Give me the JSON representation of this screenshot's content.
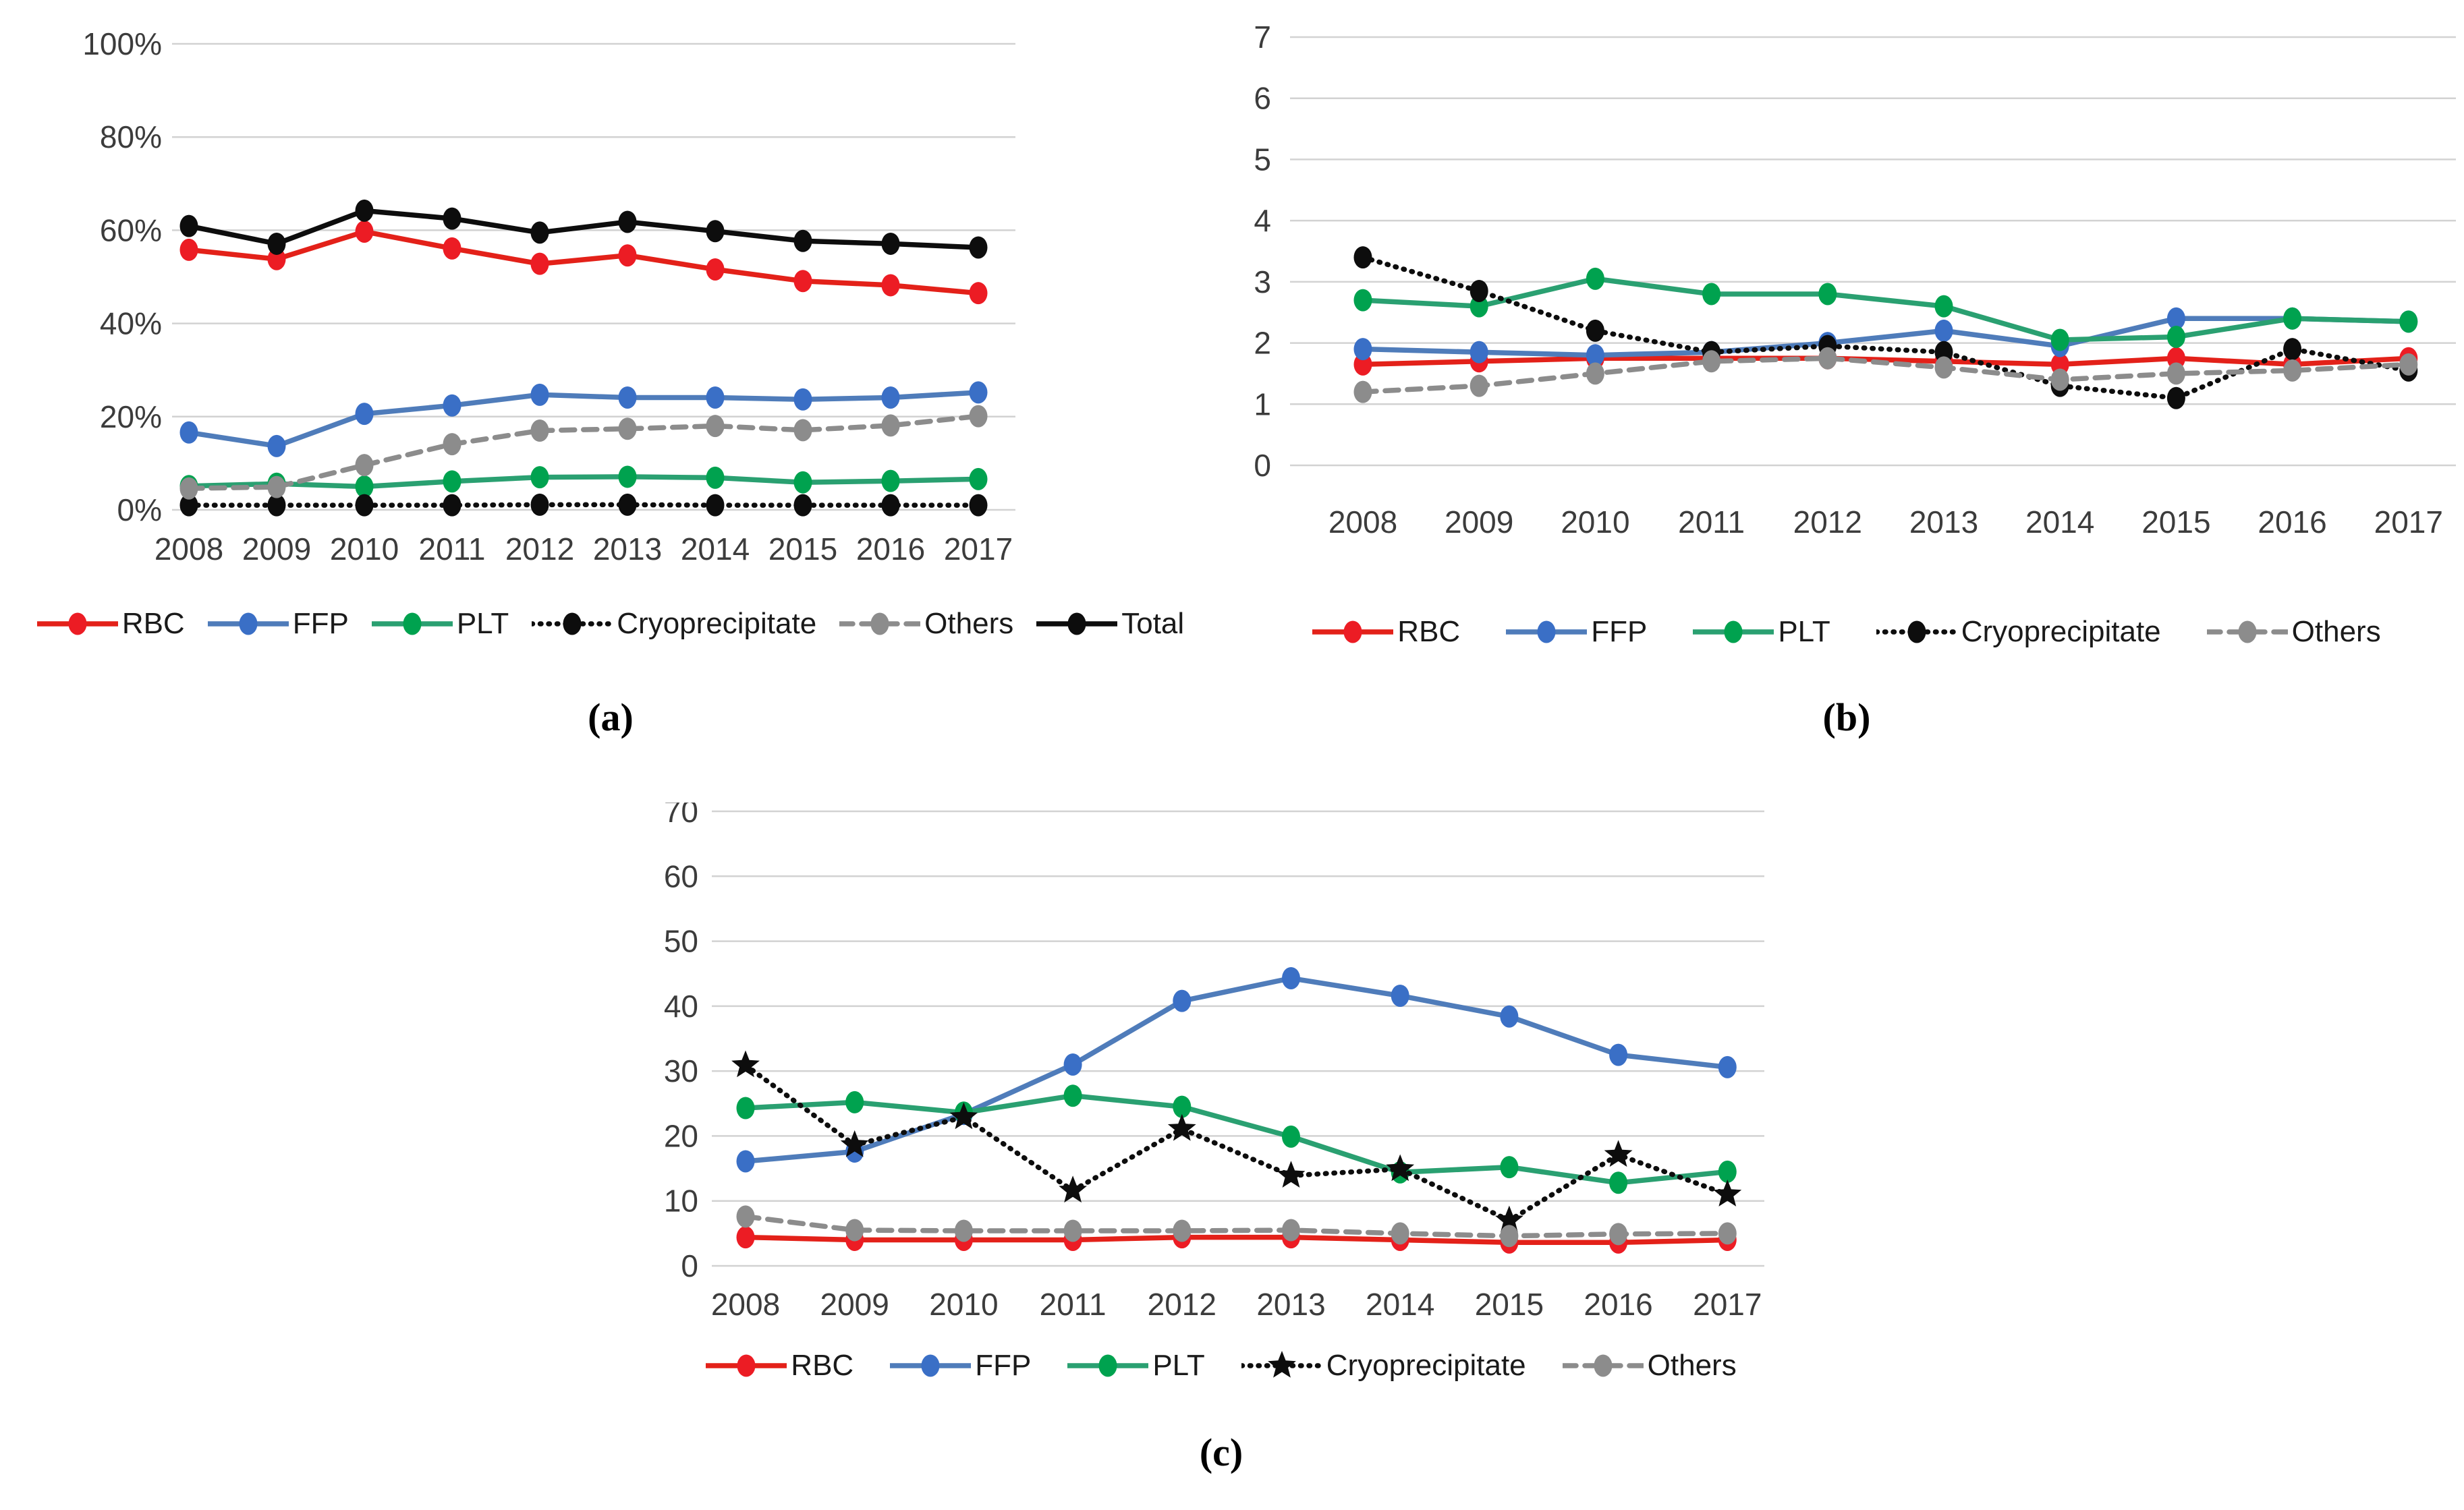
{
  "figure": {
    "background": "#ffffff",
    "grid_color": "#d2d2d2",
    "axis_text_color": "#3c3c3c",
    "legend_text_color": "#1a1a1a"
  },
  "chart_data": [
    {
      "id": "a",
      "caption": "(a)",
      "type": "line",
      "grid": true,
      "legend_position": "bottom",
      "x_categories": [
        "2008",
        "2009",
        "2010",
        "2011",
        "2012",
        "2013",
        "2014",
        "2015",
        "2016",
        "2017"
      ],
      "ylim": [
        0,
        100
      ],
      "ytick_labels": [
        "100%",
        "80%",
        "60%",
        "40%",
        "20%",
        "0%"
      ],
      "series": [
        {
          "name": "RBC",
          "color": "#e32119",
          "marker_color": "#ec1c24",
          "dash": "solid",
          "marker": "ellipse",
          "values": [
            55.8,
            53.8,
            59.7,
            56.1,
            52.8,
            54.6,
            51.6,
            49.1,
            48.2,
            46.5
          ]
        },
        {
          "name": "FFP",
          "color": "#4f7cba",
          "marker_color": "#3a6fc6",
          "dash": "solid",
          "marker": "ellipse",
          "values": [
            16.6,
            13.7,
            20.6,
            22.4,
            24.7,
            24.1,
            24.1,
            23.7,
            24.1,
            25.2
          ]
        },
        {
          "name": "PLT",
          "color": "#2aa071",
          "marker_color": "#00a24f",
          "dash": "solid",
          "marker": "ellipse",
          "values": [
            5.1,
            5.6,
            5.0,
            6.1,
            7.0,
            7.1,
            6.9,
            5.9,
            6.2,
            6.6
          ]
        },
        {
          "name": "Cryoprecipitate",
          "color": "#0d0d0d",
          "marker_color": "#0d0d0d",
          "dash": "dotted",
          "marker": "ellipse",
          "values": [
            1.0,
            1.0,
            1.0,
            1.0,
            1.1,
            1.1,
            1.0,
            1.0,
            1.0,
            1.0
          ]
        },
        {
          "name": "Others",
          "color": "#8c8c8c",
          "marker_color": "#8c8c8c",
          "dash": "dashed",
          "marker": "ellipse",
          "values": [
            4.6,
            4.9,
            9.6,
            14.1,
            17.0,
            17.4,
            18.0,
            17.1,
            18.1,
            20.1
          ]
        },
        {
          "name": "Total",
          "color": "#0d0d0d",
          "marker_color": "#0d0d0d",
          "dash": "solid",
          "marker": "ellipse",
          "values": [
            60.9,
            57.1,
            64.2,
            62.5,
            59.5,
            61.8,
            59.8,
            57.7,
            57.1,
            56.3
          ]
        }
      ]
    },
    {
      "id": "b",
      "caption": "(b)",
      "type": "line",
      "grid": true,
      "legend_position": "bottom",
      "x_categories": [
        "2008",
        "2009",
        "2010",
        "2011",
        "2012",
        "2013",
        "2014",
        "2015",
        "2016",
        "2017"
      ],
      "ylim": [
        0,
        7
      ],
      "ytick_labels": [
        "7",
        "6",
        "5",
        "4",
        "3",
        "2",
        "1",
        "0"
      ],
      "series": [
        {
          "name": "RBC",
          "color": "#e32119",
          "marker_color": "#ec1c24",
          "dash": "solid",
          "marker": "ellipse",
          "values": [
            1.65,
            1.7,
            1.75,
            1.75,
            1.75,
            1.7,
            1.65,
            1.75,
            1.65,
            1.75
          ]
        },
        {
          "name": "FFP",
          "color": "#4f7cba",
          "marker_color": "#3a6fc6",
          "dash": "solid",
          "marker": "ellipse",
          "values": [
            1.9,
            1.85,
            1.8,
            1.85,
            2.0,
            2.2,
            1.95,
            2.4,
            2.4,
            2.35
          ]
        },
        {
          "name": "PLT",
          "color": "#2aa071",
          "marker_color": "#00a24f",
          "dash": "solid",
          "marker": "ellipse",
          "values": [
            2.7,
            2.6,
            3.05,
            2.8,
            2.8,
            2.6,
            2.05,
            2.1,
            2.4,
            2.35
          ]
        },
        {
          "name": "Cryoprecipitate",
          "color": "#0d0d0d",
          "marker_color": "#0d0d0d",
          "dash": "dotted",
          "marker": "ellipse",
          "values": [
            3.4,
            2.85,
            2.2,
            1.85,
            1.95,
            1.85,
            1.3,
            1.1,
            1.9,
            1.55
          ]
        },
        {
          "name": "Others",
          "color": "#8c8c8c",
          "marker_color": "#8c8c8c",
          "dash": "dashed",
          "marker": "ellipse",
          "values": [
            1.2,
            1.3,
            1.5,
            1.7,
            1.75,
            1.6,
            1.4,
            1.5,
            1.55,
            1.65
          ]
        }
      ]
    },
    {
      "id": "c",
      "caption": "(c)",
      "type": "line",
      "grid": true,
      "legend_position": "bottom",
      "x_categories": [
        "2008",
        "2009",
        "2010",
        "2011",
        "2012",
        "2013",
        "2014",
        "2015",
        "2016",
        "2017"
      ],
      "ylim": [
        0,
        70
      ],
      "ytick_labels": [
        "70",
        "60",
        "50",
        "40",
        "30",
        "20",
        "10",
        "0"
      ],
      "series": [
        {
          "name": "RBC",
          "color": "#e32119",
          "marker_color": "#ec1c24",
          "dash": "solid",
          "marker": "ellipse",
          "values": [
            4.4,
            4.0,
            4.0,
            4.0,
            4.4,
            4.4,
            4.0,
            3.6,
            3.6,
            4.0
          ]
        },
        {
          "name": "FFP",
          "color": "#4f7cba",
          "marker_color": "#3a6fc6",
          "dash": "solid",
          "marker": "ellipse",
          "values": [
            16.1,
            17.6,
            23.4,
            31.0,
            40.8,
            44.3,
            41.6,
            38.4,
            32.5,
            30.6
          ]
        },
        {
          "name": "PLT",
          "color": "#2aa071",
          "marker_color": "#00a24f",
          "dash": "solid",
          "marker": "ellipse",
          "values": [
            24.3,
            25.2,
            23.6,
            26.2,
            24.5,
            19.9,
            14.4,
            15.2,
            12.8,
            14.5
          ]
        },
        {
          "name": "Cryoprecipitate",
          "color": "#0d0d0d",
          "marker_color": "#0d0d0d",
          "dash": "dotted",
          "marker": "star",
          "values": [
            30.9,
            18.6,
            22.9,
            11.6,
            21.1,
            13.9,
            14.9,
            7.0,
            17.1,
            11.0
          ]
        },
        {
          "name": "Others",
          "color": "#8c8c8c",
          "marker_color": "#8c8c8c",
          "dash": "dashed",
          "marker": "ellipse",
          "values": [
            7.6,
            5.5,
            5.4,
            5.4,
            5.4,
            5.5,
            5.0,
            4.6,
            4.9,
            5.0
          ]
        }
      ]
    }
  ]
}
